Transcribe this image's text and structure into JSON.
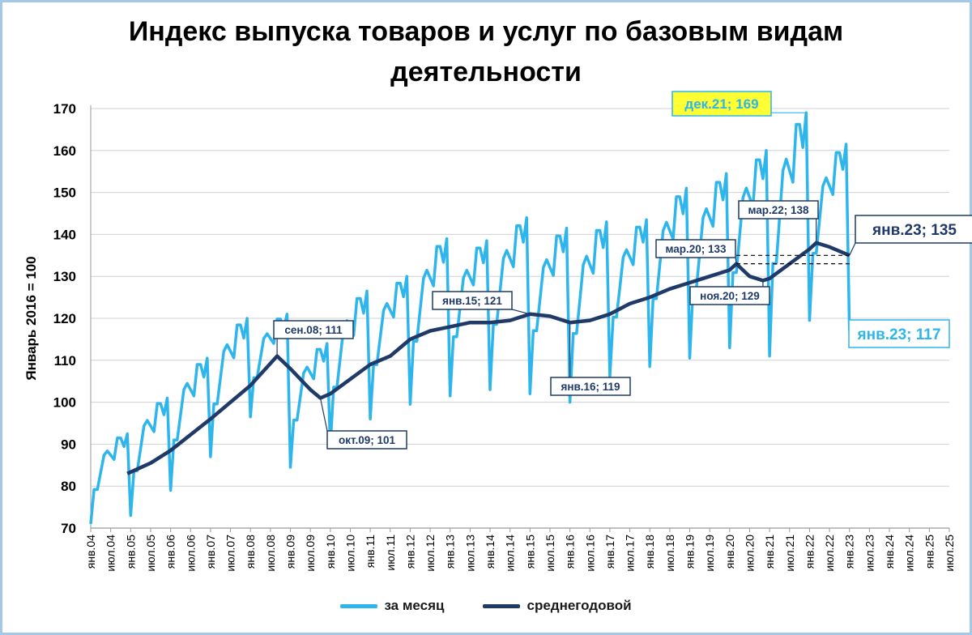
{
  "chart_data": {
    "type": "line",
    "title": "Индекс выпуска товаров и услуг по базовым видам деятельности",
    "ylabel": "Январь 2016 = 100",
    "ylim": [
      70,
      170
    ],
    "yticks": [
      70,
      80,
      90,
      100,
      110,
      120,
      130,
      140,
      150,
      160,
      170
    ],
    "xlim": [
      2004,
      2025.5
    ],
    "xtick_labels": [
      "янв.04",
      "июл.04",
      "янв.05",
      "июл.05",
      "янв.06",
      "июл.06",
      "янв.07",
      "июл.07",
      "янв.08",
      "июл.08",
      "янв.09",
      "июл.09",
      "янв.10",
      "июл.10",
      "янв.11",
      "июл.11",
      "янв.12",
      "июл.12",
      "янв.13",
      "июл.13",
      "янв.14",
      "июл.14",
      "янв.15",
      "июл.15",
      "янв.16",
      "июл.16",
      "янв.17",
      "июл.17",
      "янв.18",
      "июл.18",
      "янв.19",
      "июл.19",
      "янв.20",
      "июл.20",
      "янв.21",
      "июл.21",
      "янв.22",
      "июл.22",
      "янв.23",
      "июл.23",
      "янв.24",
      "июл.24",
      "янв.25",
      "июл.25"
    ],
    "colors": {
      "monthly": "#2eb6ec",
      "annual": "#1f3a68",
      "highlight_fill": "#ffff33",
      "grid": "#d0d0d0"
    },
    "legend_position": "bottom",
    "series": [
      {
        "name": "за месяц",
        "style": "monthly",
        "year_profile": [
          0,
          8,
          8,
          12,
          16,
          17,
          16,
          15,
          20,
          20,
          18,
          21
        ],
        "points": [
          [
            2004,
            71
          ],
          [
            2005,
            73
          ],
          [
            2006,
            79
          ],
          [
            2007,
            87
          ],
          [
            2008,
            96.5
          ],
          [
            2009,
            84.5
          ],
          [
            2010,
            89.5
          ],
          [
            2011,
            96
          ],
          [
            2012,
            99.5
          ],
          [
            2013,
            101.5
          ],
          [
            2014,
            103
          ],
          [
            2015,
            102
          ],
          [
            2016,
            100
          ],
          [
            2017,
            106
          ],
          [
            2018,
            108.5
          ],
          [
            2019,
            110.5
          ],
          [
            2020,
            113
          ],
          [
            2021,
            111
          ],
          [
            2022,
            119.5
          ],
          [
            2023,
            117
          ]
        ],
        "peaks": [
          [
            2004.917,
            92.5
          ],
          [
            2005.917,
            101
          ],
          [
            2006.917,
            110.5
          ],
          [
            2007.917,
            120
          ],
          [
            2008.583,
            121
          ],
          [
            2009.917,
            114
          ],
          [
            2010.917,
            126.5
          ],
          [
            2011.917,
            130
          ],
          [
            2012.917,
            139
          ],
          [
            2013.917,
            138.5
          ],
          [
            2014.917,
            144
          ],
          [
            2015.917,
            141.5
          ],
          [
            2016.917,
            143
          ],
          [
            2017.917,
            143.5
          ],
          [
            2018.917,
            151
          ],
          [
            2019.917,
            154.5
          ],
          [
            2020.917,
            160
          ],
          [
            2021.917,
            169
          ],
          [
            2022.917,
            161.5
          ]
        ]
      },
      {
        "name": "среднегодовой",
        "style": "annual",
        "points": [
          [
            2004.917,
            83
          ],
          [
            2005.5,
            85.5
          ],
          [
            2006.0,
            88.5
          ],
          [
            2007.0,
            96
          ],
          [
            2008.0,
            104
          ],
          [
            2008.667,
            111
          ],
          [
            2009.0,
            108
          ],
          [
            2009.5,
            103
          ],
          [
            2009.75,
            101
          ],
          [
            2010.0,
            102
          ],
          [
            2010.5,
            105.5
          ],
          [
            2011.0,
            109
          ],
          [
            2011.5,
            111
          ],
          [
            2012.0,
            115
          ],
          [
            2012.5,
            117
          ],
          [
            2013.0,
            118
          ],
          [
            2013.5,
            119
          ],
          [
            2014.0,
            119
          ],
          [
            2014.5,
            119.5
          ],
          [
            2015.0,
            121
          ],
          [
            2015.5,
            120.5
          ],
          [
            2016.0,
            119
          ],
          [
            2016.5,
            119.5
          ],
          [
            2017.0,
            121
          ],
          [
            2017.5,
            123.5
          ],
          [
            2018.0,
            125
          ],
          [
            2018.5,
            127
          ],
          [
            2019.0,
            128.5
          ],
          [
            2019.5,
            130
          ],
          [
            2020.0,
            131.5
          ],
          [
            2020.167,
            133
          ],
          [
            2020.5,
            130
          ],
          [
            2020.833,
            129
          ],
          [
            2021.0,
            129.5
          ],
          [
            2021.5,
            133
          ],
          [
            2022.0,
            136.5
          ],
          [
            2022.167,
            138
          ],
          [
            2022.5,
            137
          ],
          [
            2023.0,
            135
          ]
        ]
      }
    ],
    "annotations": [
      {
        "text": "дек.21; 169",
        "x": 2021.917,
        "y": 169,
        "style": "highlight"
      },
      {
        "text": "мар.22; 138",
        "x": 2022.167,
        "y": 138,
        "style": "dark-small"
      },
      {
        "text": "янв.23; 135",
        "x": 2023.0,
        "y": 135,
        "style": "dark-large"
      },
      {
        "text": "янв.23; 117",
        "x": 2023.0,
        "y": 117,
        "style": "light-large"
      },
      {
        "text": "мар.20; 133",
        "x": 2020.167,
        "y": 133,
        "style": "dark-small"
      },
      {
        "text": "ноя.20; 129",
        "x": 2020.833,
        "y": 129,
        "style": "dark-small"
      },
      {
        "text": "янв.15; 121",
        "x": 2015.0,
        "y": 121,
        "style": "dark-small"
      },
      {
        "text": "янв.16; 119",
        "x": 2016.0,
        "y": 119,
        "style": "dark-small"
      },
      {
        "text": "сен.08; 111",
        "x": 2008.667,
        "y": 111,
        "style": "dark-small"
      },
      {
        "text": "окт.09; 101",
        "x": 2009.75,
        "y": 101,
        "style": "dark-small"
      }
    ],
    "reference_lines": [
      {
        "y": 135,
        "x_from": 2020.167,
        "x_to": 2023.0,
        "style": "dashed"
      },
      {
        "y": 133,
        "x_from": 2020.167,
        "x_to": 2023.0,
        "style": "dashed"
      }
    ]
  }
}
